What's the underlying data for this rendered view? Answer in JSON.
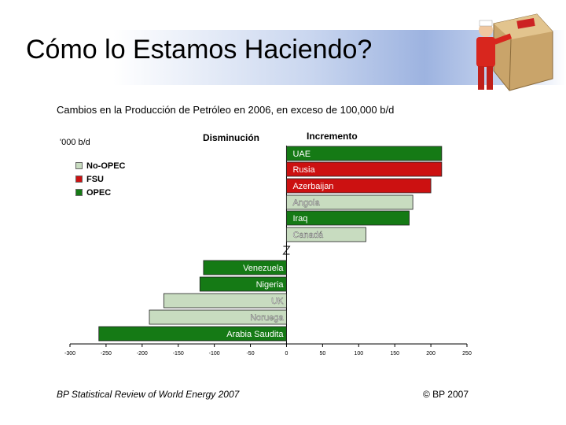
{
  "slide": {
    "title": "Cómo lo Estamos Haciendo?",
    "subtitle": "Cambios en la Producción de Petróleo en 2006, en exceso de 100,000 b/d",
    "unit_label": "'000 b/d",
    "header_decrease": "Disminución",
    "header_increase": "Incremento",
    "footer_source": "BP Statistical Review of World Energy 2007",
    "footer_copyright": "© BP 2007"
  },
  "colors": {
    "No-OPEC": "#c8dcc0",
    "FSU": "#cc1111",
    "OPEC": "#157a15"
  },
  "chart_data": {
    "type": "bar",
    "orientation": "horizontal",
    "title": "Cambios en la Producción de Petróleo en 2006, en exceso de 100,000 b/d",
    "xlabel": "'000 b/d",
    "xlim": [
      -300,
      250
    ],
    "xticks": [
      -300,
      -250,
      -200,
      -150,
      -100,
      -50,
      0,
      50,
      100,
      150,
      200,
      250
    ],
    "legend": {
      "position": "top-left",
      "entries": [
        "No-OPEC",
        "FSU",
        "OPEC"
      ]
    },
    "bars": [
      {
        "label": "UAE",
        "value": 215,
        "group": "OPEC"
      },
      {
        "label": "Rusia",
        "value": 215,
        "group": "FSU"
      },
      {
        "label": "Azerbaijan",
        "value": 200,
        "group": "FSU"
      },
      {
        "label": "Angola",
        "value": 175,
        "group": "No-OPEC"
      },
      {
        "label": "Iraq",
        "value": 170,
        "group": "OPEC"
      },
      {
        "label": "Canadá",
        "value": 110,
        "group": "No-OPEC"
      },
      {
        "label": "Venezuela",
        "value": -115,
        "group": "OPEC"
      },
      {
        "label": "Nigeria",
        "value": -120,
        "group": "OPEC"
      },
      {
        "label": "UK",
        "value": -170,
        "group": "No-OPEC"
      },
      {
        "label": "Noruega",
        "value": -190,
        "group": "No-OPEC"
      },
      {
        "label": "Arabia Saudita",
        "value": -260,
        "group": "OPEC"
      }
    ]
  }
}
